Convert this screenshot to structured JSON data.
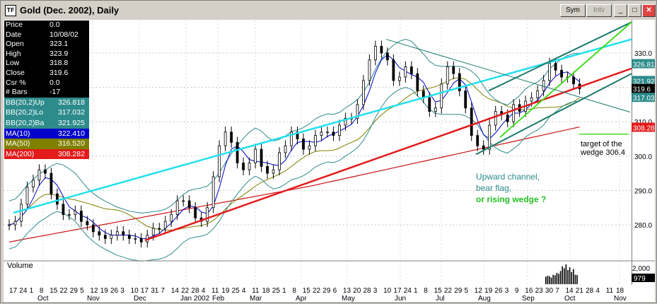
{
  "window": {
    "title": "Gold (Dec. 2002), Daily",
    "icon_label": "TF",
    "buttons": {
      "sym": "Sym",
      "intv": "Intv",
      "minimize": "_",
      "maximize": "□",
      "close": "✕"
    }
  },
  "info_panel": [
    {
      "label": "Price",
      "value": "0.0"
    },
    {
      "label": "Date",
      "value": "10/08/02"
    },
    {
      "label": "Open",
      "value": "323.1"
    },
    {
      "label": "High",
      "value": "323.9"
    },
    {
      "label": "Low",
      "value": "318.8"
    },
    {
      "label": "Close",
      "value": "319.6"
    },
    {
      "label": "Csr %",
      "value": "0.0"
    },
    {
      "label": "# Bars",
      "value": "-17"
    }
  ],
  "indicators": [
    {
      "label": "BB(20,2)Up",
      "value": "326.818",
      "bg": "#2e8b8b",
      "fg": "#ffffff"
    },
    {
      "label": "BB(20,2)Lo",
      "value": "317.032",
      "bg": "#2e8b8b",
      "fg": "#ffffff"
    },
    {
      "label": "BB(20,2)Ba",
      "value": "321.925",
      "bg": "#2e8b8b",
      "fg": "#ffffff"
    },
    {
      "label": "MA(10)",
      "value": "322.410",
      "bg": "#0000cc",
      "fg": "#ffffff"
    },
    {
      "label": "MA(50)",
      "value": "316.520",
      "bg": "#808000",
      "fg": "#ffffff"
    },
    {
      "label": "MA(200)",
      "value": "308.282",
      "bg": "#e31b1b",
      "fg": "#ffffff"
    }
  ],
  "price_labels": [
    {
      "text": "326.81",
      "bg": "#2e8b8b",
      "fg": "#ffffff",
      "price": 326.8
    },
    {
      "text": "321.92",
      "bg": "#2e8b8b",
      "fg": "#ffffff",
      "price": 321.9
    },
    {
      "text": "319.6",
      "bg": "#000000",
      "fg": "#ffffff",
      "price": 319.6
    },
    {
      "text": "317.03",
      "bg": "#2e8b8b",
      "fg": "#ffffff",
      "price": 317.0
    },
    {
      "text": "308.28",
      "bg": "#e31b1b",
      "fg": "#ffffff",
      "price": 308.3
    }
  ],
  "annotations": {
    "target_line1": "target of the",
    "target_line2": "wedge 306.4",
    "channel_line1": "Upward channel,",
    "channel_line2": "bear flag,",
    "channel_line3": "or rising wedge ?"
  },
  "volume_panel": {
    "label": "Volume",
    "tick_top": "2,000",
    "current": "979"
  },
  "colors": {
    "candle": "#000000",
    "bb": "#2e8b8b",
    "ma10": "#0000cc",
    "ma50": "#808000",
    "ma200": "#cc1111",
    "trend_red": "#e31b1b",
    "trend_cyan": "#22e0f0",
    "channel": "#1a7a6a",
    "wedge_green": "#44dd22"
  },
  "chart_data": {
    "type": "candlestick",
    "title": "Gold (Dec. 2002), Daily",
    "ylim": [
      270,
      340
    ],
    "yticks": [
      280.0,
      290.0,
      300.0,
      310.0,
      320.0,
      330.0
    ],
    "x_day_ticks": [
      "17",
      "24",
      "1",
      "8",
      "15",
      "22",
      "29",
      "5",
      "12",
      "19",
      "26",
      "3",
      "10",
      "17",
      "31",
      "7",
      "14",
      "22",
      "28",
      "4",
      "11",
      "19",
      "25",
      "4",
      "11",
      "18",
      "25",
      "1",
      "8",
      "15",
      "22",
      "29",
      "6",
      "13",
      "20",
      "28",
      "3",
      "10",
      "17",
      "24",
      "1",
      "8",
      "15",
      "22",
      "29",
      "5",
      "12",
      "19",
      "26",
      "3",
      "9",
      "16",
      "23",
      "30",
      "7",
      "14",
      "21",
      "28",
      "4",
      "11",
      "18"
    ],
    "x_month_ticks": [
      "Oct",
      "Nov",
      "Dec",
      "Jan 2002",
      "Feb",
      "Mar",
      "Apr",
      "May",
      "Jun",
      "Jul",
      "Aug",
      "Sep",
      "Oct",
      "Nov"
    ],
    "close_series": [
      [
        0,
        280
      ],
      [
        3,
        281
      ],
      [
        6,
        286
      ],
      [
        9,
        291
      ],
      [
        12,
        293
      ],
      [
        15,
        296
      ],
      [
        18,
        295
      ],
      [
        21,
        289
      ],
      [
        24,
        286
      ],
      [
        27,
        283
      ],
      [
        30,
        283
      ],
      [
        33,
        284
      ],
      [
        36,
        281
      ],
      [
        39,
        280
      ],
      [
        42,
        278
      ],
      [
        45,
        277
      ],
      [
        48,
        276
      ],
      [
        51,
        277
      ],
      [
        54,
        278
      ],
      [
        57,
        277
      ],
      [
        60,
        276
      ],
      [
        63,
        276
      ],
      [
        66,
        275
      ],
      [
        69,
        277
      ],
      [
        72,
        279
      ],
      [
        75,
        279
      ],
      [
        78,
        281
      ],
      [
        81,
        283
      ],
      [
        84,
        287
      ],
      [
        87,
        287
      ],
      [
        90,
        285
      ],
      [
        93,
        282
      ],
      [
        96,
        281
      ],
      [
        99,
        285
      ],
      [
        102,
        294
      ],
      [
        105,
        303
      ],
      [
        108,
        307
      ],
      [
        111,
        304
      ],
      [
        114,
        298
      ],
      [
        117,
        296
      ],
      [
        120,
        298
      ],
      [
        123,
        302
      ],
      [
        126,
        297
      ],
      [
        129,
        295
      ],
      [
        132,
        296
      ],
      [
        135,
        301
      ],
      [
        138,
        303
      ],
      [
        141,
        307
      ],
      [
        144,
        305
      ],
      [
        147,
        302
      ],
      [
        150,
        303
      ],
      [
        153,
        306
      ],
      [
        156,
        307
      ],
      [
        159,
        307
      ],
      [
        162,
        306
      ],
      [
        165,
        309
      ],
      [
        168,
        311
      ],
      [
        171,
        311
      ],
      [
        174,
        315
      ],
      [
        177,
        322
      ],
      [
        180,
        328
      ],
      [
        183,
        332
      ],
      [
        186,
        330
      ],
      [
        189,
        328
      ],
      [
        192,
        322
      ],
      [
        195,
        323
      ],
      [
        198,
        326
      ],
      [
        201,
        324
      ],
      [
        204,
        319
      ],
      [
        207,
        317
      ],
      [
        210,
        313
      ],
      [
        213,
        314
      ],
      [
        216,
        321
      ],
      [
        219,
        326
      ],
      [
        222,
        324
      ],
      [
        225,
        319
      ],
      [
        228,
        314
      ],
      [
        231,
        306
      ],
      [
        234,
        303
      ],
      [
        237,
        302
      ],
      [
        240,
        309
      ],
      [
        243,
        313
      ],
      [
        246,
        312
      ],
      [
        249,
        310
      ],
      [
        252,
        315
      ],
      [
        255,
        313
      ],
      [
        258,
        316
      ],
      [
        261,
        317
      ],
      [
        264,
        319
      ],
      [
        267,
        322
      ],
      [
        270,
        327
      ],
      [
        273,
        325
      ],
      [
        276,
        323
      ],
      [
        279,
        323
      ],
      [
        282,
        321
      ],
      [
        285,
        319.6
      ]
    ],
    "volume_values": [
      800,
      900,
      850,
      700,
      1000,
      950,
      1200,
      1100,
      1400,
      1900,
      1700,
      2100,
      1500,
      1800,
      1300,
      1600,
      1000,
      979
    ],
    "target": 306.4
  }
}
